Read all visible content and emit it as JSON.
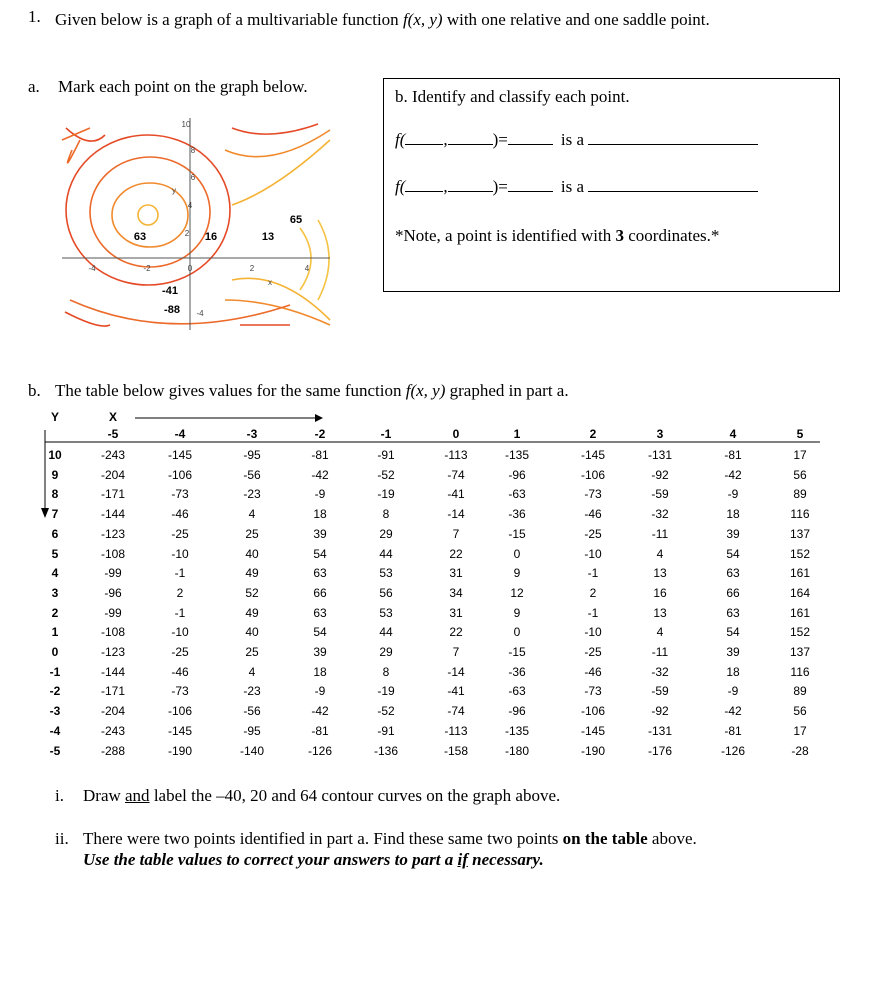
{
  "question": {
    "number": "1.",
    "text_a": "Given below is a graph of a multivariable function ",
    "func": "f(x, y)",
    "text_b": " with one relative and one saddle point."
  },
  "part_a": {
    "label": "a.",
    "text": "Mark each point on the graph below."
  },
  "graph": {
    "contour_labels": [
      63,
      16,
      13,
      65,
      -41,
      -88
    ],
    "y_ticks": [
      10,
      8,
      6,
      4,
      2,
      -4
    ],
    "x_ticks": [
      -4,
      -2,
      0,
      2,
      4
    ],
    "x_label": "x",
    "y_label": "y"
  },
  "answer_box": {
    "title": "b. Identify and classify each point.",
    "rows": [
      {
        "open": "f(",
        "sep": ",",
        "close": ")=",
        "is_a": "is a"
      },
      {
        "open": "f(",
        "sep": ",",
        "close": ")=",
        "is_a": "is a"
      }
    ],
    "note_a": "*Note, a point is identified with ",
    "note_bold": "3",
    "note_b": " coordinates.*"
  },
  "part_b": {
    "label": "b.",
    "text_a": "The table below gives values for the same function ",
    "func": "f(x, y)",
    "text_b": " graphed in part a."
  },
  "table": {
    "y_header": "Y",
    "x_header": "X",
    "columns": [
      -5,
      -4,
      -3,
      -2,
      -1,
      0,
      1,
      2,
      3,
      4,
      5
    ],
    "rows": [
      {
        "y": 10,
        "values": [
          -243,
          -145,
          -95,
          -81,
          -91,
          -113,
          -135,
          -145,
          -131,
          -81,
          17
        ]
      },
      {
        "y": 9,
        "values": [
          -204,
          -106,
          -56,
          -42,
          -52,
          -74,
          -96,
          -106,
          -92,
          -42,
          56
        ]
      },
      {
        "y": 8,
        "values": [
          -171,
          -73,
          -23,
          -9,
          -19,
          -41,
          -63,
          -73,
          -59,
          -9,
          89
        ]
      },
      {
        "y": 7,
        "values": [
          -144,
          -46,
          4,
          18,
          8,
          -14,
          -36,
          -46,
          -32,
          18,
          116
        ]
      },
      {
        "y": 6,
        "values": [
          -123,
          -25,
          25,
          39,
          29,
          7,
          -15,
          -25,
          -11,
          39,
          137
        ]
      },
      {
        "y": 5,
        "values": [
          -108,
          -10,
          40,
          54,
          44,
          22,
          0,
          -10,
          4,
          54,
          152
        ]
      },
      {
        "y": 4,
        "values": [
          -99,
          -1,
          49,
          63,
          53,
          31,
          9,
          -1,
          13,
          63,
          161
        ]
      },
      {
        "y": 3,
        "values": [
          -96,
          2,
          52,
          66,
          56,
          34,
          12,
          2,
          16,
          66,
          164
        ]
      },
      {
        "y": 2,
        "values": [
          -99,
          -1,
          49,
          63,
          53,
          31,
          9,
          -1,
          13,
          63,
          161
        ]
      },
      {
        "y": 1,
        "values": [
          -108,
          -10,
          40,
          54,
          44,
          22,
          0,
          -10,
          4,
          54,
          152
        ]
      },
      {
        "y": 0,
        "values": [
          -123,
          -25,
          25,
          39,
          29,
          7,
          -15,
          -25,
          -11,
          39,
          137
        ]
      },
      {
        "y": -1,
        "values": [
          -144,
          -46,
          4,
          18,
          8,
          -14,
          -36,
          -46,
          -32,
          18,
          116
        ]
      },
      {
        "y": -2,
        "values": [
          -171,
          -73,
          -23,
          -9,
          -19,
          -41,
          -63,
          -73,
          -59,
          -9,
          89
        ]
      },
      {
        "y": -3,
        "values": [
          -204,
          -106,
          -56,
          -42,
          -52,
          -74,
          -96,
          -106,
          -92,
          -42,
          56
        ]
      },
      {
        "y": -4,
        "values": [
          -243,
          -145,
          -95,
          -81,
          -91,
          -113,
          -135,
          -145,
          -131,
          -81,
          17
        ]
      },
      {
        "y": -5,
        "values": [
          -288,
          -190,
          -140,
          -126,
          -136,
          -158,
          -180,
          -190,
          -176,
          -126,
          -28
        ]
      }
    ]
  },
  "instructions": [
    {
      "number": "i.",
      "text_a": "Draw ",
      "underlined": "and",
      "text_b": " label the –40, 20 and 64 contour curves on the graph above."
    },
    {
      "number": "ii.",
      "text_a": "There were two points identified in part a.  Find these same two points ",
      "bold": "on the table",
      "text_b": " above.",
      "emph_a": "Use the table values to correct your answers to part a ",
      "emph_underlined": "if",
      "emph_b": " necessary."
    }
  ]
}
